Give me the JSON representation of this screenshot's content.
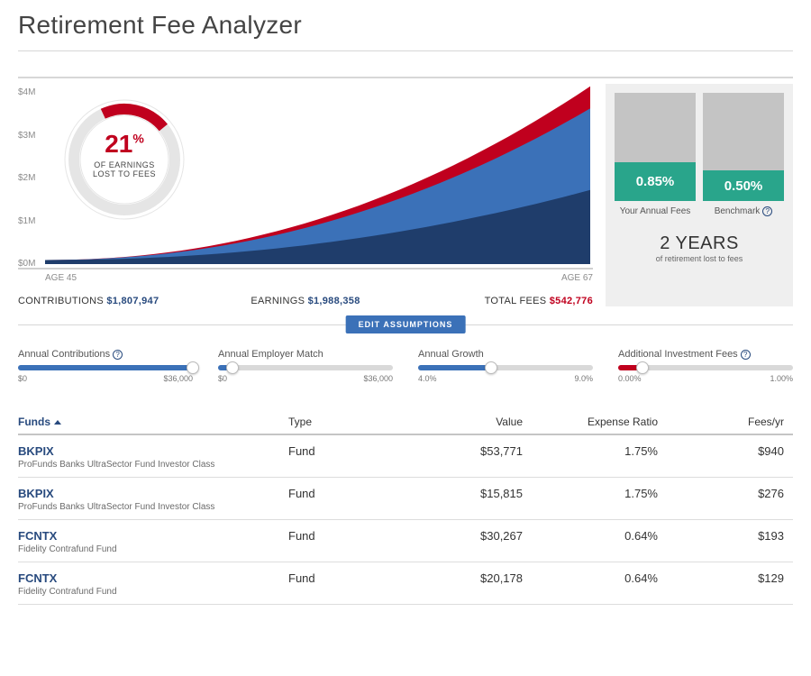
{
  "page_title": "Retirement Fee Analyzer",
  "colors": {
    "red": "#c0001e",
    "blue_mid": "#3b71b8",
    "blue_dark": "#1f3d6b",
    "green": "#29a58b",
    "slider_blue": "#3b71b8",
    "slider_red": "#c0001e",
    "link_blue": "#284a7e",
    "btn_blue": "#3b71b8"
  },
  "chart": {
    "type": "stacked-area",
    "y_ticks": [
      "$0M",
      "$1M",
      "$2M",
      "$3M",
      "$4M"
    ],
    "y_max": 4.4,
    "x_start_label": "AGE 45",
    "x_end_label": "AGE 67",
    "series": {
      "contributions": {
        "color": "#1f3d6b",
        "end_value": 1.81
      },
      "earnings": {
        "color": "#3b71b8",
        "end_value": 3.8
      },
      "fees": {
        "color": "#c0001e",
        "end_value": 4.34
      }
    }
  },
  "donut": {
    "percent": "21",
    "percent_symbol": "%",
    "subtitle_l1": "OF EARNINGS",
    "subtitle_l2": "LOST TO FEES",
    "fraction": 0.21,
    "ring_color": "#c0001e",
    "ring_bg": "#e5e5e5"
  },
  "totals": {
    "contributions_label": "CONTRIBUTIONS",
    "contributions_value": "$1,807,947",
    "contributions_color": "#284a7e",
    "earnings_label": "EARNINGS",
    "earnings_value": "$1,988,358",
    "earnings_color": "#284a7e",
    "fees_label": "TOTAL FEES",
    "fees_value": "$542,776",
    "fees_color": "#c0001e"
  },
  "side_panel": {
    "bars": [
      {
        "label": "Your Annual Fees",
        "value_display": "0.85%",
        "fill_pct": 36,
        "color": "#29a58b"
      },
      {
        "label": "Benchmark",
        "value_display": "0.50%",
        "fill_pct": 28,
        "color": "#29a58b",
        "info": true
      }
    ],
    "summary_big": "2 YEARS",
    "summary_small": "of retirement lost to fees"
  },
  "edit_button": "EDIT ASSUMPTIONS",
  "sliders": [
    {
      "label": "Annual Contributions",
      "info": true,
      "min": "$0",
      "max": "$36,000",
      "fill_pct": 100,
      "thumb_pct": 100,
      "color": "#3b71b8"
    },
    {
      "label": "Annual Employer Match",
      "info": false,
      "min": "$0",
      "max": "$36,000",
      "fill_pct": 8,
      "thumb_pct": 8,
      "color": "#3b71b8"
    },
    {
      "label": "Annual Growth",
      "info": false,
      "min": "4.0%",
      "max": "9.0%",
      "fill_pct": 42,
      "thumb_pct": 42,
      "color": "#3b71b8"
    },
    {
      "label": "Additional Investment Fees",
      "info": true,
      "min": "0.00%",
      "max": "1.00%",
      "fill_pct": 14,
      "thumb_pct": 14,
      "color": "#c0001e"
    }
  ],
  "table": {
    "columns": {
      "funds": "Funds",
      "type": "Type",
      "value": "Value",
      "expense": "Expense Ratio",
      "fees": "Fees/yr"
    },
    "rows": [
      {
        "ticker": "BKPIX",
        "name": "ProFunds Banks UltraSector Fund Investor Class",
        "type": "Fund",
        "value": "$53,771",
        "expense": "1.75%",
        "fees": "$940"
      },
      {
        "ticker": "BKPIX",
        "name": "ProFunds Banks UltraSector Fund Investor Class",
        "type": "Fund",
        "value": "$15,815",
        "expense": "1.75%",
        "fees": "$276"
      },
      {
        "ticker": "FCNTX",
        "name": "Fidelity Contrafund Fund",
        "type": "Fund",
        "value": "$30,267",
        "expense": "0.64%",
        "fees": "$193"
      },
      {
        "ticker": "FCNTX",
        "name": "Fidelity Contrafund Fund",
        "type": "Fund",
        "value": "$20,178",
        "expense": "0.64%",
        "fees": "$129"
      }
    ]
  }
}
